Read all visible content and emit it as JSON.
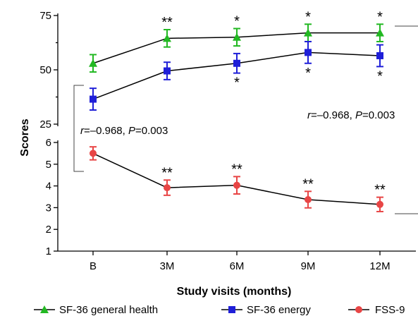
{
  "chart_data": {
    "type": "line",
    "xlabel": "Study visits (months)",
    "ylabel": "Scores",
    "categories": [
      "B",
      "3M",
      "6M",
      "9M",
      "12M"
    ],
    "upper_panel": {
      "ylim": [
        25,
        75
      ],
      "yticks": [
        25,
        50,
        75
      ],
      "series": [
        {
          "name": "SF-36 general health",
          "color": "#22b822",
          "marker": "triangle",
          "values": [
            53,
            64.5,
            65,
            67,
            67
          ],
          "errors": [
            4,
            4,
            4,
            4,
            4
          ],
          "sig_above": [
            "",
            "**",
            "*",
            "*",
            "*"
          ],
          "sig_below": [
            "",
            "",
            "",
            "",
            ""
          ]
        },
        {
          "name": "SF-36 energy",
          "color": "#1f1fd8",
          "marker": "square",
          "values": [
            36.5,
            49.5,
            53,
            58,
            56.5
          ],
          "errors": [
            5,
            4,
            4.5,
            5,
            5
          ],
          "sig_above": [
            "",
            "",
            "",
            "",
            ""
          ],
          "sig_below": [
            "",
            "",
            "*",
            "*",
            "*"
          ]
        }
      ],
      "annotation": "r=–0.968, P=0.003"
    },
    "lower_panel": {
      "ylim": [
        1,
        6
      ],
      "yticks": [
        1,
        2,
        3,
        4,
        5,
        6
      ],
      "series": [
        {
          "name": "FSS-9",
          "color": "#e84545",
          "marker": "circle",
          "values": [
            5.5,
            3.92,
            4.03,
            3.37,
            3.15
          ],
          "errors": [
            0.3,
            0.35,
            0.4,
            0.38,
            0.33
          ],
          "sig_above": [
            "",
            "**",
            "**",
            "**",
            "**"
          ]
        }
      ],
      "annotation": "r=–0.968, P=0.003"
    },
    "legend": [
      "SF-36 general health",
      "SF-36 energy",
      "FSS-9"
    ]
  }
}
